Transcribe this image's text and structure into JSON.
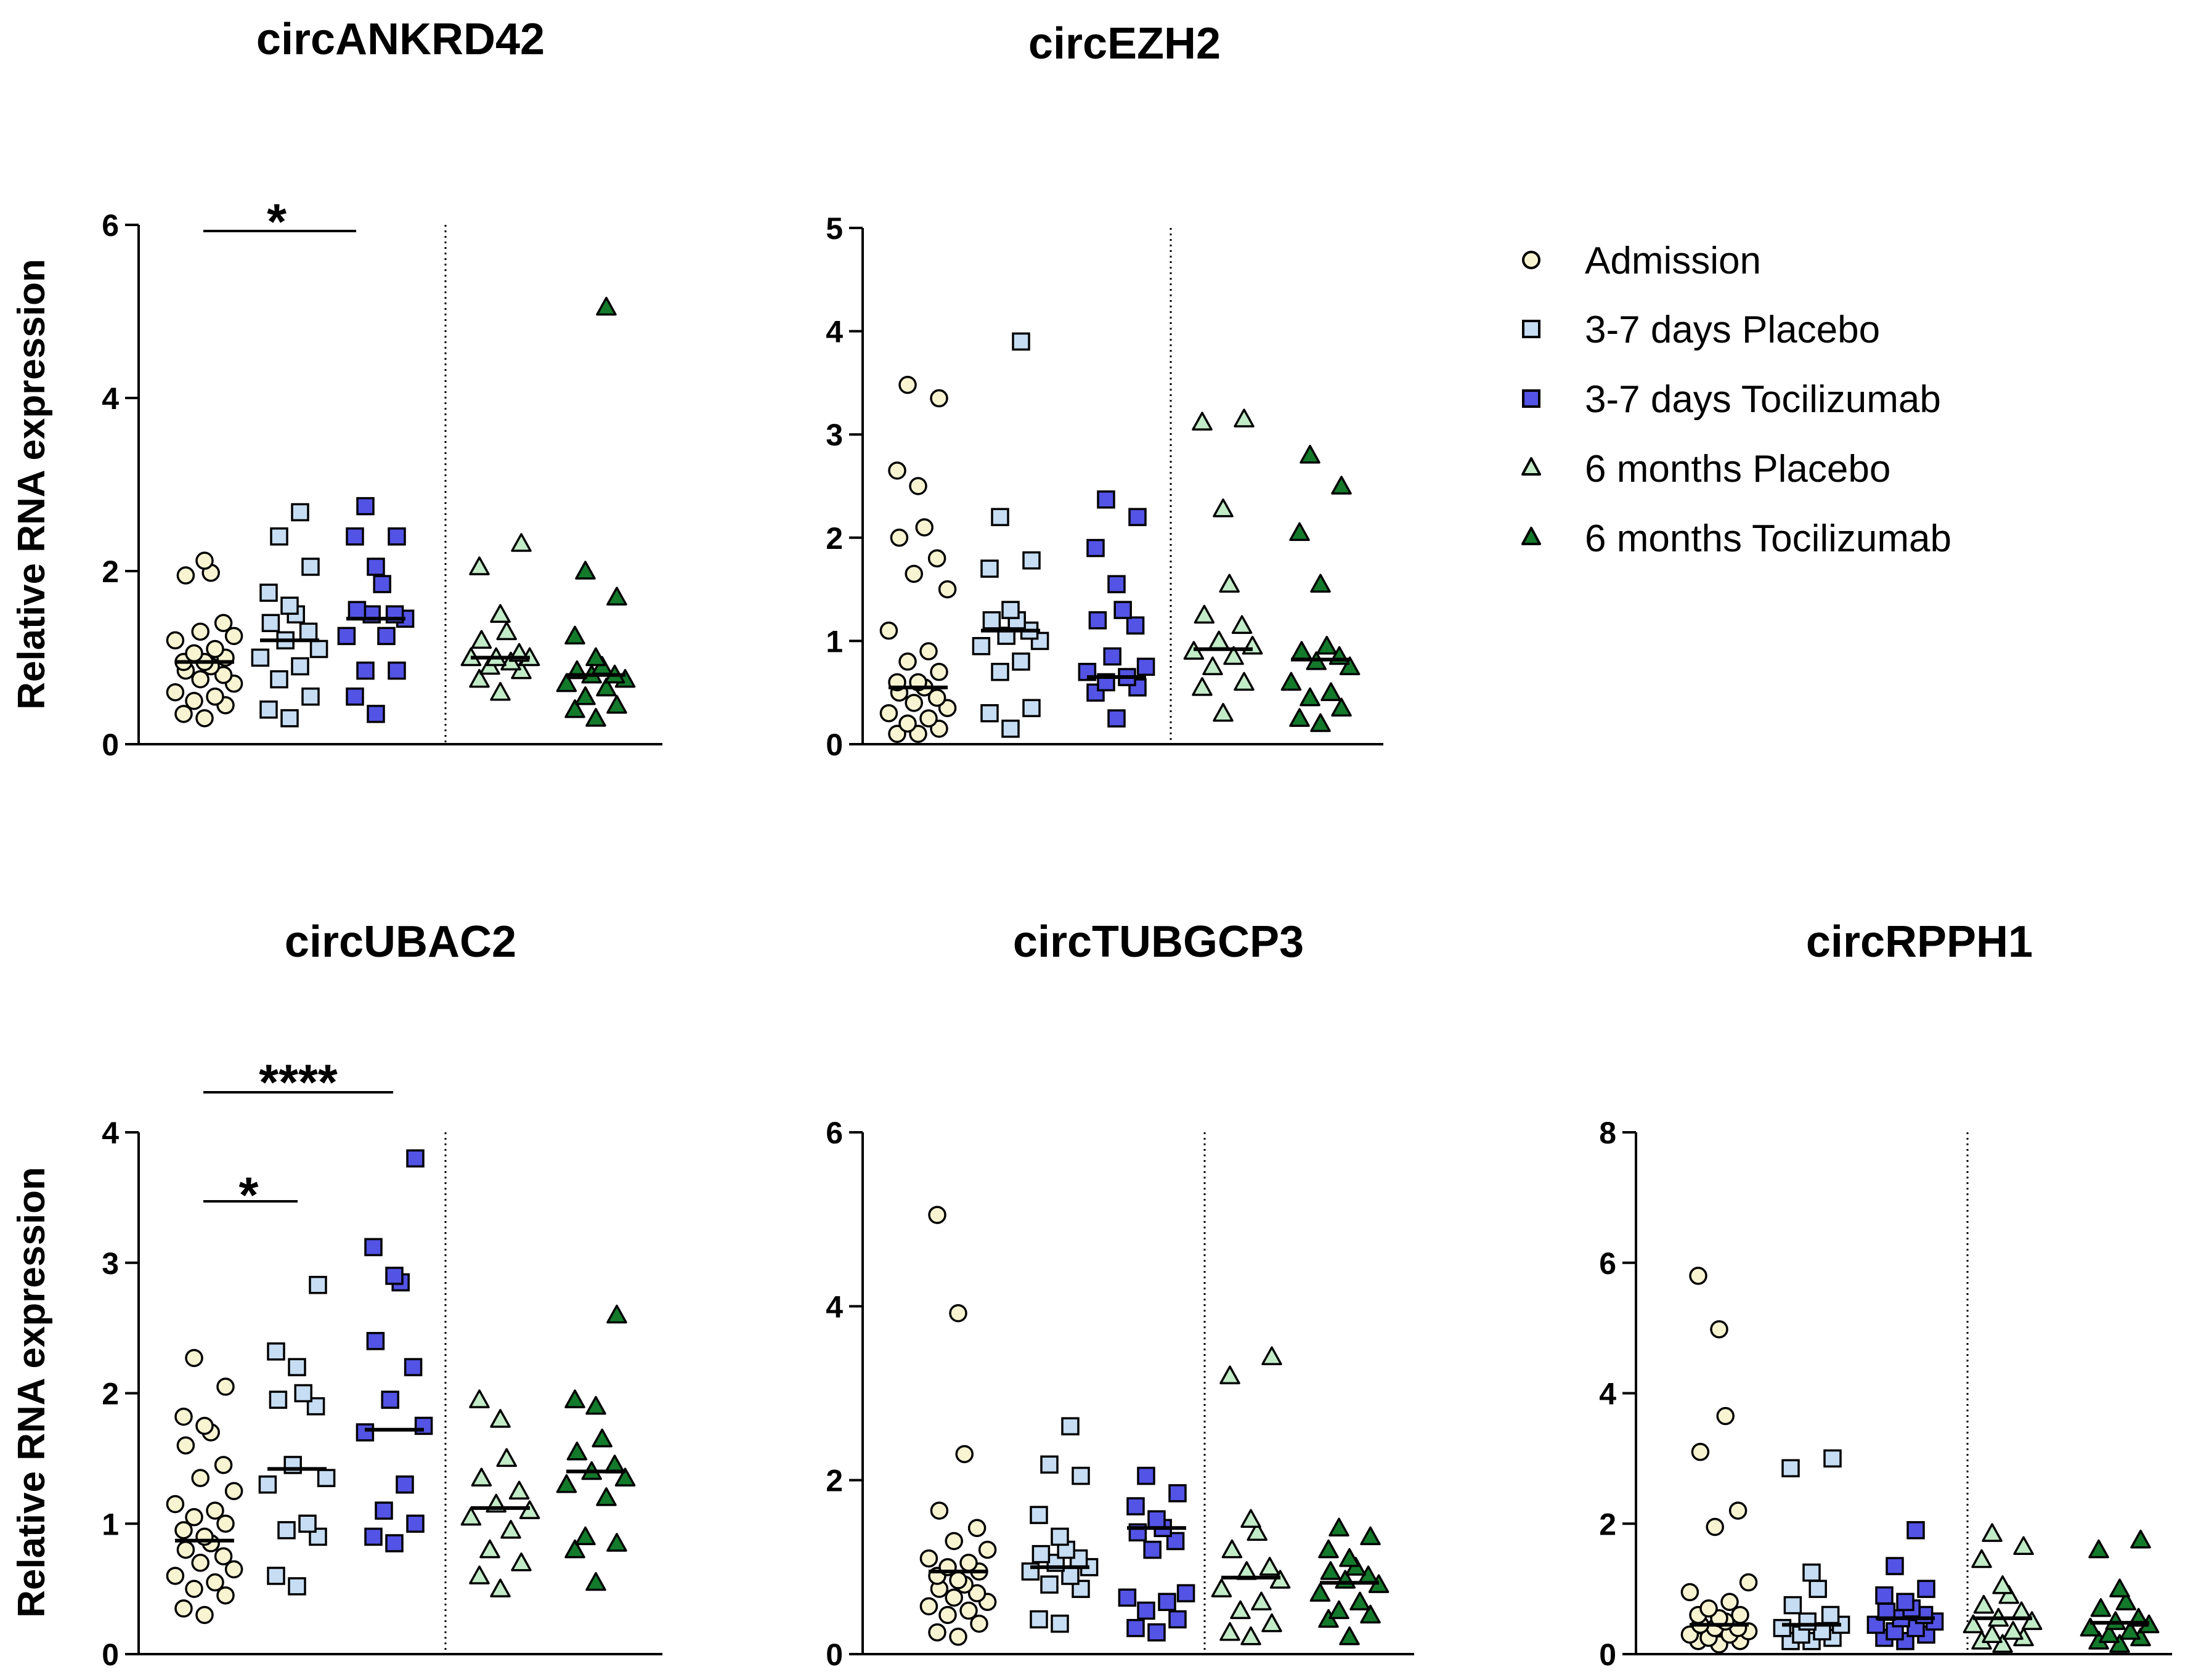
{
  "colors": {
    "admission": "#F8F4D2",
    "placebo_3_7": "#C6DDF3",
    "tocilizumab_3_7": "#5353E5",
    "placebo_6m": "#C2EBC7",
    "tocilizumab_6m": "#147A2B",
    "axis": "#000000"
  },
  "legend": [
    {
      "key": "admission",
      "label": "Admission",
      "marker": "circle"
    },
    {
      "key": "placebo_3_7",
      "label": "3-7 days Placebo",
      "marker": "square"
    },
    {
      "key": "tocilizumab_3_7",
      "label": "3-7 days Tocilizumab",
      "marker": "square"
    },
    {
      "key": "placebo_6m",
      "label": "6 months Placebo",
      "marker": "triangle"
    },
    {
      "key": "tocilizumab_6m",
      "label": "6 months Tocilizumab",
      "marker": "triangle"
    }
  ],
  "chart_data": [
    {
      "type": "scatter",
      "title": "circANKRD42",
      "ylabel": "Relative RNA expression",
      "ylim": [
        0,
        6
      ],
      "yticks": [
        0,
        2,
        4,
        6
      ],
      "ytick_labels": [
        "0",
        "2",
        "4",
        "6"
      ],
      "significance": [
        {
          "from": 0,
          "to": 2,
          "label": "*"
        }
      ],
      "groups": [
        {
          "key": "admission",
          "median": 0.95,
          "values": [
            2.12,
            1.95,
            1.98,
            1.4,
            1.3,
            1.25,
            1.1,
            1.05,
            1.0,
            0.95,
            0.95,
            0.9,
            0.85,
            0.8,
            0.75,
            0.7,
            0.6,
            0.55,
            0.5,
            0.45,
            0.35,
            0.3,
            1.2
          ]
        },
        {
          "key": "placebo_3_7",
          "median": 1.2,
          "values": [
            2.68,
            2.4,
            2.05,
            1.75,
            1.6,
            1.5,
            1.4,
            1.3,
            1.2,
            1.1,
            1.0,
            0.9,
            0.75,
            0.55,
            0.4,
            0.3
          ]
        },
        {
          "key": "tocilizumab_3_7",
          "median": 1.45,
          "values": [
            2.75,
            2.4,
            2.4,
            2.05,
            1.85,
            1.55,
            1.5,
            1.5,
            1.45,
            1.25,
            1.25,
            0.85,
            0.85,
            0.55,
            0.35
          ]
        },
        {
          "key": "placebo_6m",
          "median": 1.0,
          "values": [
            2.32,
            2.05,
            1.5,
            1.3,
            1.2,
            1.05,
            1.0,
            1.0,
            1.0,
            0.95,
            0.9,
            0.85,
            0.75,
            0.6
          ]
        },
        {
          "key": "tocilizumab_6m",
          "median": 0.8,
          "values": [
            5.05,
            2.0,
            1.7,
            1.25,
            1.0,
            0.9,
            0.85,
            0.8,
            0.75,
            0.7,
            0.65,
            0.55,
            0.45,
            0.4,
            0.3,
            0.8
          ]
        }
      ]
    },
    {
      "type": "scatter",
      "title": "circEZH2",
      "ylabel": "",
      "ylim": [
        0,
        5
      ],
      "yticks": [
        0,
        1,
        2,
        3,
        4,
        5
      ],
      "ytick_labels": [
        "0",
        "1",
        "2",
        "3",
        "4",
        "5"
      ],
      "significance": [],
      "groups": [
        {
          "key": "admission",
          "median": 0.55,
          "values": [
            3.48,
            3.35,
            2.65,
            2.5,
            2.1,
            2.0,
            1.8,
            1.65,
            1.5,
            1.1,
            0.9,
            0.8,
            0.7,
            0.6,
            0.55,
            0.5,
            0.45,
            0.4,
            0.3,
            0.25,
            0.2,
            0.15,
            0.1,
            0.1,
            0.6,
            0.35
          ]
        },
        {
          "key": "placebo_3_7",
          "median": 1.1,
          "values": [
            3.9,
            2.2,
            1.78,
            1.7,
            1.3,
            1.2,
            1.2,
            1.1,
            1.05,
            1.0,
            0.95,
            0.8,
            0.7,
            0.35,
            0.3,
            0.15
          ]
        },
        {
          "key": "tocilizumab_3_7",
          "median": 0.65,
          "values": [
            2.37,
            2.2,
            1.9,
            1.55,
            1.3,
            1.2,
            1.15,
            0.85,
            0.75,
            0.7,
            0.65,
            0.6,
            0.55,
            0.5,
            0.25
          ]
        },
        {
          "key": "placebo_6m",
          "median": 0.92,
          "values": [
            3.15,
            3.12,
            2.28,
            1.55,
            1.25,
            1.15,
            1.0,
            0.95,
            0.9,
            0.85,
            0.75,
            0.6,
            0.55,
            0.3
          ]
        },
        {
          "key": "tocilizumab_6m",
          "median": 0.82,
          "values": [
            2.8,
            2.5,
            2.05,
            1.55,
            0.95,
            0.9,
            0.85,
            0.8,
            0.75,
            0.6,
            0.5,
            0.45,
            0.35,
            0.25,
            0.2
          ]
        }
      ]
    },
    {
      "type": "scatter",
      "title": "circUBAC2",
      "ylabel": "Relative RNA expression",
      "ylim": [
        0,
        4
      ],
      "yticks": [
        0,
        1,
        2,
        3,
        4
      ],
      "ytick_labels": [
        "0",
        "1",
        "2",
        "3",
        "4"
      ],
      "significance": [
        {
          "from": 0,
          "to": 1,
          "label": "*"
        },
        {
          "from": 0,
          "to": 2,
          "label": "****"
        }
      ],
      "groups": [
        {
          "key": "admission",
          "median": 0.87,
          "values": [
            2.27,
            2.05,
            1.82,
            1.75,
            1.7,
            1.6,
            1.45,
            1.35,
            1.25,
            1.15,
            1.1,
            1.0,
            0.95,
            0.9,
            0.85,
            0.8,
            0.75,
            0.7,
            0.65,
            0.6,
            0.55,
            0.45,
            0.35,
            0.3,
            1.05,
            0.5
          ]
        },
        {
          "key": "placebo_3_7",
          "median": 1.42,
          "values": [
            2.83,
            2.32,
            2.2,
            2.0,
            1.95,
            1.9,
            1.45,
            1.35,
            1.3,
            1.0,
            0.95,
            0.9,
            0.6,
            0.52
          ]
        },
        {
          "key": "tocilizumab_3_7",
          "median": 1.72,
          "values": [
            3.8,
            3.12,
            2.9,
            2.85,
            2.4,
            2.2,
            1.95,
            1.75,
            1.7,
            1.3,
            1.1,
            1.0,
            0.9,
            0.85
          ]
        },
        {
          "key": "placebo_6m",
          "median": 1.12,
          "values": [
            1.95,
            1.8,
            1.5,
            1.35,
            1.25,
            1.15,
            1.1,
            1.05,
            0.95,
            0.8,
            0.7,
            0.6,
            0.5
          ]
        },
        {
          "key": "tocilizumab_6m",
          "median": 1.4,
          "values": [
            2.6,
            1.95,
            1.9,
            1.65,
            1.55,
            1.45,
            1.4,
            1.35,
            1.3,
            1.2,
            0.9,
            0.85,
            0.8,
            0.55
          ]
        }
      ]
    },
    {
      "type": "scatter",
      "title": "circTUBGCP3",
      "ylabel": "",
      "ylim": [
        0,
        6
      ],
      "yticks": [
        0,
        2,
        4,
        6
      ],
      "ytick_labels": [
        "0",
        "2",
        "4",
        "6"
      ],
      "significance": [],
      "groups": [
        {
          "key": "admission",
          "median": 0.95,
          "values": [
            5.05,
            3.92,
            2.3,
            1.65,
            1.45,
            1.3,
            1.2,
            1.1,
            1.0,
            0.95,
            0.9,
            0.85,
            0.8,
            0.75,
            0.7,
            0.65,
            0.6,
            0.55,
            0.5,
            0.45,
            0.35,
            0.25,
            0.2,
            1.05
          ]
        },
        {
          "key": "placebo_3_7",
          "median": 1.0,
          "values": [
            2.62,
            2.18,
            2.05,
            1.6,
            1.35,
            1.2,
            1.15,
            1.1,
            1.05,
            1.0,
            0.95,
            0.9,
            0.8,
            0.75,
            0.4,
            0.35
          ]
        },
        {
          "key": "tocilizumab_3_7",
          "median": 1.45,
          "values": [
            2.05,
            1.85,
            1.7,
            1.55,
            1.45,
            1.4,
            1.3,
            1.2,
            0.7,
            0.65,
            0.6,
            0.5,
            0.4,
            0.3,
            0.25
          ]
        },
        {
          "key": "placebo_6m",
          "median": 0.88,
          "values": [
            3.42,
            3.2,
            1.55,
            1.4,
            1.2,
            1.0,
            0.95,
            0.85,
            0.75,
            0.6,
            0.5,
            0.35,
            0.25,
            0.2
          ]
        },
        {
          "key": "tocilizumab_6m",
          "median": 0.82,
          "values": [
            1.45,
            1.35,
            1.2,
            1.1,
            1.0,
            0.95,
            0.9,
            0.85,
            0.8,
            0.7,
            0.6,
            0.5,
            0.45,
            0.4,
            0.2
          ]
        }
      ]
    },
    {
      "type": "scatter",
      "title": "circRPPH1",
      "ylabel": "",
      "ylim": [
        0,
        8
      ],
      "yticks": [
        0,
        2,
        4,
        6,
        8
      ],
      "ytick_labels": [
        "0",
        "2",
        "4",
        "6",
        "8"
      ],
      "significance": [],
      "groups": [
        {
          "key": "admission",
          "median": 0.45,
          "values": [
            5.8,
            4.98,
            3.65,
            3.1,
            2.2,
            1.95,
            1.1,
            0.95,
            0.8,
            0.7,
            0.6,
            0.55,
            0.5,
            0.45,
            0.4,
            0.35,
            0.3,
            0.25,
            0.2,
            0.2,
            0.15,
            0.6,
            0.4,
            0.3
          ]
        },
        {
          "key": "placebo_3_7",
          "median": 0.45,
          "values": [
            3.0,
            2.85,
            1.25,
            1.0,
            0.75,
            0.6,
            0.5,
            0.45,
            0.4,
            0.35,
            0.3,
            0.25,
            0.2,
            0.2
          ]
        },
        {
          "key": "tocilizumab_3_7",
          "median": 0.55,
          "values": [
            1.9,
            1.35,
            1.0,
            0.9,
            0.8,
            0.7,
            0.65,
            0.6,
            0.55,
            0.5,
            0.45,
            0.4,
            0.35,
            0.3,
            0.25,
            0.2
          ]
        },
        {
          "key": "placebo_6m",
          "median": 0.55,
          "values": [
            1.85,
            1.65,
            1.45,
            1.05,
            0.9,
            0.75,
            0.65,
            0.55,
            0.5,
            0.45,
            0.35,
            0.3,
            0.25,
            0.2,
            0.15
          ]
        },
        {
          "key": "tocilizumab_6m",
          "median": 0.48,
          "values": [
            1.75,
            1.6,
            1.0,
            0.8,
            0.7,
            0.55,
            0.5,
            0.45,
            0.4,
            0.35,
            0.3,
            0.25,
            0.2,
            0.15
          ]
        }
      ]
    }
  ]
}
